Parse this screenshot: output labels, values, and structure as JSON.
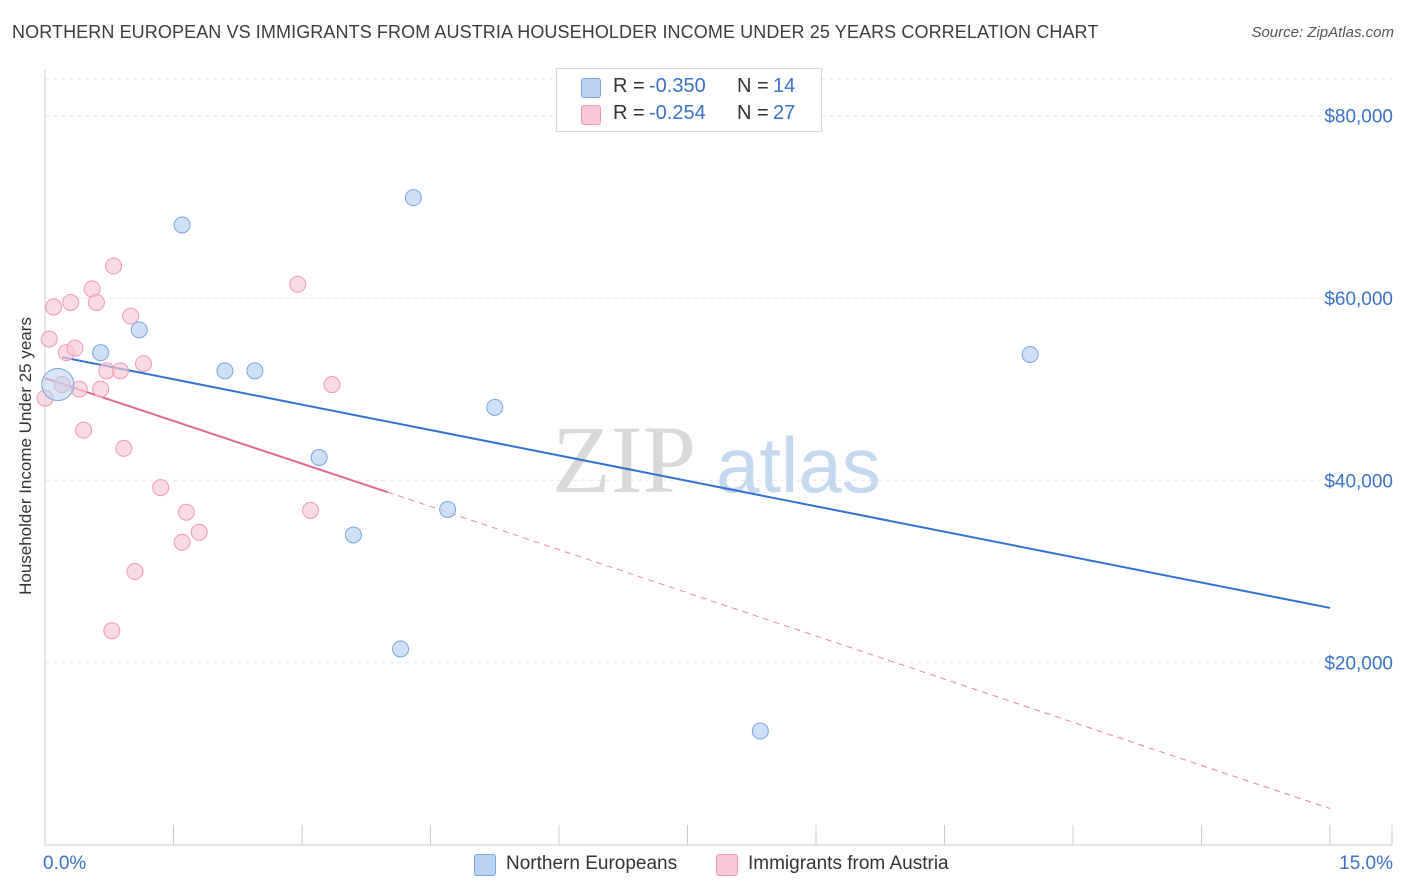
{
  "header": {
    "title": "NORTHERN EUROPEAN VS IMMIGRANTS FROM AUSTRIA HOUSEHOLDER INCOME UNDER 25 YEARS CORRELATION CHART",
    "source": "Source: ZipAtlas.com"
  },
  "legend": {
    "series1": {
      "r_label": "R = ",
      "r_value": "-0.350",
      "n_label": "N = ",
      "n_value": "14"
    },
    "series2": {
      "r_label": "R = ",
      "r_value": "-0.254",
      "n_label": "N = ",
      "n_value": "27"
    }
  },
  "bottom_legend": {
    "series1": "Northern Europeans",
    "series2": "Immigrants from Austria"
  },
  "watermark": {
    "zip": "ZIP",
    "atlas": "atlas"
  },
  "colors": {
    "blue_fill": "#b9d3f3",
    "blue_stroke": "#7ba4dc",
    "blue_line": "#2f72d0",
    "pink_fill": "#f8c8d6",
    "pink_stroke": "#ee9ab3",
    "pink_line": "#e06a92",
    "axis_label": "#3a72c8",
    "grid": "#e6e6e6"
  },
  "chart_data": {
    "type": "scatter",
    "title": "NORTHERN EUROPEAN VS IMMIGRANTS FROM AUSTRIA HOUSEHOLDER INCOME UNDER 25 YEARS CORRELATION CHART",
    "xlabel": "",
    "ylabel": "Householder Income Under 25 years",
    "xlim": [
      0,
      15
    ],
    "ylim": [
      0,
      85000
    ],
    "x_tick_labels": [
      "0.0%",
      "15.0%"
    ],
    "y_ticks": [
      20000,
      40000,
      60000,
      80000
    ],
    "y_tick_labels": [
      "$20,000",
      "$40,000",
      "$60,000",
      "$80,000"
    ],
    "grid": true,
    "legend_position": "top-center",
    "series": [
      {
        "name": "Northern Europeans",
        "color": "#7ba4dc",
        "points": [
          {
            "x": 0.15,
            "y": 50500,
            "big": true
          },
          {
            "x": 0.65,
            "y": 54000
          },
          {
            "x": 1.1,
            "y": 56500
          },
          {
            "x": 1.6,
            "y": 68000
          },
          {
            "x": 2.1,
            "y": 52000
          },
          {
            "x": 2.45,
            "y": 52000
          },
          {
            "x": 3.2,
            "y": 42500
          },
          {
            "x": 3.6,
            "y": 34000
          },
          {
            "x": 4.15,
            "y": 21500
          },
          {
            "x": 4.3,
            "y": 71000
          },
          {
            "x": 4.7,
            "y": 36800
          },
          {
            "x": 5.25,
            "y": 48000
          },
          {
            "x": 8.35,
            "y": 12500
          },
          {
            "x": 11.5,
            "y": 53800
          }
        ],
        "trend": {
          "x0": 0.2,
          "y0": 53500,
          "x1": 15.0,
          "y1": 26000
        }
      },
      {
        "name": "Immigrants from Austria",
        "color": "#ee9ab3",
        "points": [
          {
            "x": 0.0,
            "y": 49000
          },
          {
            "x": 0.05,
            "y": 55500
          },
          {
            "x": 0.1,
            "y": 59000
          },
          {
            "x": 0.2,
            "y": 50500
          },
          {
            "x": 0.25,
            "y": 54000
          },
          {
            "x": 0.3,
            "y": 59500
          },
          {
            "x": 0.35,
            "y": 54500
          },
          {
            "x": 0.4,
            "y": 50000
          },
          {
            "x": 0.45,
            "y": 45500
          },
          {
            "x": 0.55,
            "y": 61000
          },
          {
            "x": 0.6,
            "y": 59500
          },
          {
            "x": 0.65,
            "y": 50000
          },
          {
            "x": 0.72,
            "y": 52000
          },
          {
            "x": 0.78,
            "y": 23500
          },
          {
            "x": 0.8,
            "y": 63500
          },
          {
            "x": 0.88,
            "y": 52000
          },
          {
            "x": 0.92,
            "y": 43500
          },
          {
            "x": 1.0,
            "y": 58000
          },
          {
            "x": 1.05,
            "y": 30000
          },
          {
            "x": 1.15,
            "y": 52800
          },
          {
            "x": 1.35,
            "y": 39200
          },
          {
            "x": 1.6,
            "y": 33200
          },
          {
            "x": 1.65,
            "y": 36500
          },
          {
            "x": 1.8,
            "y": 34300
          },
          {
            "x": 2.95,
            "y": 61500
          },
          {
            "x": 3.1,
            "y": 36700
          },
          {
            "x": 3.35,
            "y": 50500
          }
        ],
        "trend": {
          "x0": 0.0,
          "y0": 51200,
          "x1": 4.0,
          "y1": 38700
        },
        "trend_dashed_extension": {
          "x0": 4.0,
          "y0": 38700,
          "x1": 15.0,
          "y1": 4000
        }
      }
    ]
  }
}
